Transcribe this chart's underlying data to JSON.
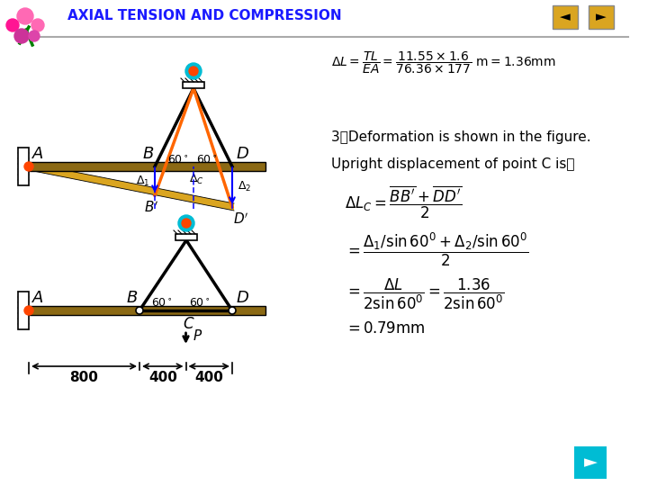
{
  "bg_color": "#ffffff",
  "title": "AXIAL TENSION AND COMPRESSION",
  "title_color": "#1a1aff",
  "header_line_color": "#aaaaaa",
  "beam_color": "#8B6914",
  "beam_color2": "#DAA520",
  "bar_color": "#000000",
  "orange_bar_color": "#FF6600",
  "pin_outer": "#00bcd4",
  "pin_inner": "#ff4500",
  "text1": "3）Deformation is shown in the figure.",
  "text2": "Upright displacement of point C is："
}
